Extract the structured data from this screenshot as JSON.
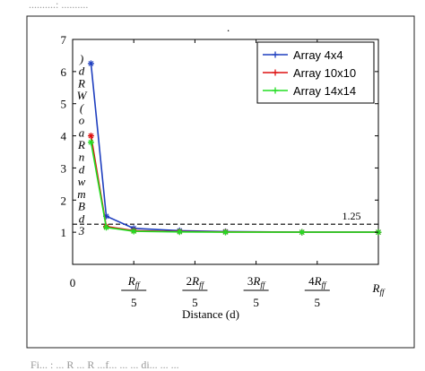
{
  "chart_data": {
    "type": "line",
    "title": "",
    "xlabel": "Distance (d)",
    "ylabel_chars": [
      ")",
      "d",
      "R",
      "W",
      "(",
      "o",
      "a",
      "R",
      "n",
      "d",
      "w",
      "m",
      "B",
      "d",
      "3"
    ],
    "xlim": [
      0,
      1
    ],
    "ylim": [
      0,
      7
    ],
    "y_ticks": [
      "0",
      "1",
      "2",
      "3",
      "4",
      "5",
      "6",
      "7"
    ],
    "x_ticks": [
      {
        "value": 0,
        "text": "0"
      },
      {
        "value": 0.2,
        "num": "R",
        "num_sub": "ff",
        "den": "5"
      },
      {
        "value": 0.4,
        "num": "2R",
        "num_sub": "ff",
        "den": "5"
      },
      {
        "value": 0.6,
        "num": "3R",
        "num_sub": "ff",
        "den": "5"
      },
      {
        "value": 0.8,
        "num": "4R",
        "num_sub": "ff",
        "den": "5"
      },
      {
        "value": 1.0,
        "num": "R",
        "num_sub": "ff"
      }
    ],
    "reference_line": {
      "y": 1.25,
      "label": "1.25",
      "color": "#000000",
      "style": "dashed"
    },
    "series": [
      {
        "name": "Array 4x4",
        "color": "#1f3fbf",
        "marker": "star",
        "x": [
          0.06,
          0.11,
          0.2,
          0.35,
          0.5,
          0.75,
          1.0
        ],
        "y": [
          6.25,
          1.5,
          1.12,
          1.05,
          1.02,
          1.0,
          1.0
        ]
      },
      {
        "name": "Array 10x10",
        "color": "#dd1111",
        "marker": "star",
        "x": [
          0.06,
          0.11,
          0.2,
          0.35,
          0.5,
          0.75,
          1.0
        ],
        "y": [
          4.0,
          1.18,
          1.05,
          1.02,
          1.01,
          1.0,
          1.0
        ]
      },
      {
        "name": "Array 14x14",
        "color": "#22dd22",
        "marker": "star",
        "x": [
          0.06,
          0.11,
          0.2,
          0.35,
          0.5,
          0.75,
          1.0
        ],
        "y": [
          3.8,
          1.15,
          1.03,
          1.01,
          1.0,
          1.0,
          1.0
        ]
      }
    ],
    "legend": "top-right",
    "grid": false
  },
  "header_fragment": "..........: ..........",
  "top_dot": ".",
  "caption_fragment": "Fi... : ... R ... R ...f... ... ... di... ... ..."
}
